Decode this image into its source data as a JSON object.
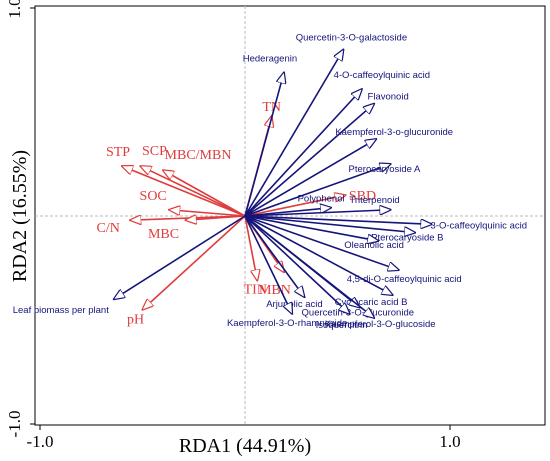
{
  "chart_data": {
    "type": "rda_biplot",
    "xlabel": "RDA1 (44.91%)",
    "ylabel": "RDA2 (16.55%)",
    "xlim": [
      -1.0,
      1.0
    ],
    "ylim": [
      -1.0,
      1.0
    ],
    "x_ticks": [
      {
        "value": -1.0,
        "label": "-1.0"
      },
      {
        "value": 1.0,
        "label": "1.0"
      }
    ],
    "y_ticks": [
      {
        "value": 1.0,
        "label": "1.0"
      },
      {
        "value": -1.0,
        "label": "-1.0"
      }
    ],
    "colors": {
      "response": "#14147a",
      "explanatory": "#e03c3c"
    },
    "response_vectors": [
      {
        "label": "Quercetin-3-O-galactoside",
        "x": 0.48,
        "y": 0.8
      },
      {
        "label": "Hederagenin",
        "x": 0.19,
        "y": 0.69
      },
      {
        "label": "4-O-caffeoylquinic acid",
        "x": 0.57,
        "y": 0.61
      },
      {
        "label": "Flavonoid",
        "x": 0.63,
        "y": 0.54
      },
      {
        "label": "Kaempferol-3-o-glucuronide",
        "x": 0.64,
        "y": 0.37
      },
      {
        "label": "Pterocaryoside A",
        "x": 0.71,
        "y": 0.25
      },
      {
        "label": "Polyphenol",
        "x": 0.42,
        "y": 0.04
      },
      {
        "label": "Triterpenoid",
        "x": 0.71,
        "y": 0.03
      },
      {
        "label": "3-O-caffeoylquinic acid",
        "x": 0.91,
        "y": -0.04
      },
      {
        "label": "Pterocaryoside B",
        "x": 0.83,
        "y": -0.08
      },
      {
        "label": "Oleanolic acid",
        "x": 0.65,
        "y": -0.12
      },
      {
        "label": "4,5-di-O-caffeoylquinic acid",
        "x": 0.75,
        "y": -0.26
      },
      {
        "label": "Cyclocaric acid B",
        "x": 0.72,
        "y": -0.38
      },
      {
        "label": "Quercetin-3-O-glucuronide",
        "x": 0.56,
        "y": -0.44
      },
      {
        "label": "Kaempferol-3-O-glucoside",
        "x": 0.63,
        "y": -0.49
      },
      {
        "label": "Isoquercitrin",
        "x": 0.51,
        "y": -0.47
      },
      {
        "label": "Arjunolic acid",
        "x": 0.29,
        "y": -0.39
      },
      {
        "label": "Kaempferol-3-O-rhamnoside",
        "x": 0.23,
        "y": -0.47
      },
      {
        "label": "Leaf biomass per plant",
        "x": -0.64,
        "y": -0.4
      }
    ],
    "explanatory_vectors": [
      {
        "label": "TN",
        "x": 0.13,
        "y": 0.48
      },
      {
        "label": "STP",
        "x": -0.6,
        "y": 0.24
      },
      {
        "label": "SCP",
        "x": -0.51,
        "y": 0.24
      },
      {
        "label": "MBC/MBN",
        "x": -0.4,
        "y": 0.22
      },
      {
        "label": "SBD",
        "x": 0.49,
        "y": 0.1
      },
      {
        "label": "SOC",
        "x": -0.37,
        "y": 0.03
      },
      {
        "label": "C/N",
        "x": -0.56,
        "y": -0.02
      },
      {
        "label": "MBC",
        "x": -0.29,
        "y": -0.02
      },
      {
        "label": "TIN",
        "x": 0.06,
        "y": -0.31
      },
      {
        "label": "MBN",
        "x": 0.19,
        "y": -0.27
      },
      {
        "label": "pH",
        "x": -0.5,
        "y": -0.45
      }
    ]
  }
}
